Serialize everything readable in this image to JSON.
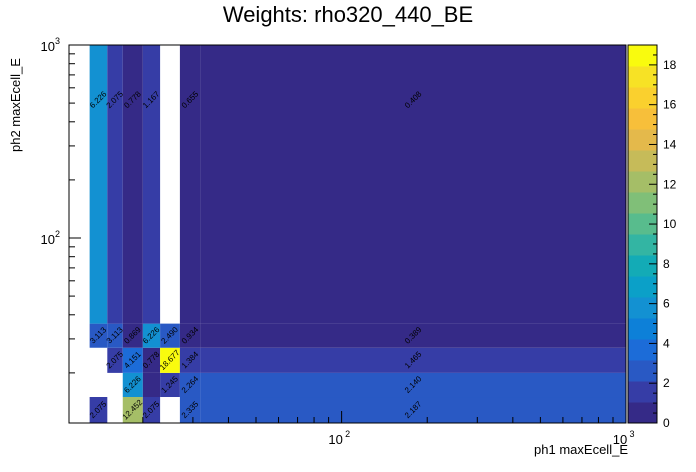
{
  "chart_data": {
    "type": "heatmap",
    "title": "Weights: rho320_440_BE",
    "xlabel": "ph1 maxEcell_E",
    "ylabel": "ph2 maxEcell_E",
    "x_scale": "log",
    "y_scale": "log",
    "xlim": [
      11,
      1000
    ],
    "ylim": [
      11,
      1000
    ],
    "x_ticks": [
      {
        "v": 100,
        "base": "10",
        "exp": "2"
      },
      {
        "v": 1000,
        "base": "10",
        "exp": "3"
      }
    ],
    "y_ticks": [
      {
        "v": 100,
        "base": "10",
        "exp": "2"
      },
      {
        "v": 1000,
        "base": "10",
        "exp": "3"
      }
    ],
    "x_edges": [
      11,
      13,
      15,
      17,
      20,
      23,
      27,
      32,
      1000
    ],
    "y_edges": [
      11,
      15,
      20,
      27,
      36,
      1000
    ],
    "colorbar": {
      "min": 0,
      "max": 19,
      "ticks": [
        0,
        2,
        4,
        6,
        8,
        10,
        12,
        14,
        16,
        18
      ],
      "palette": [
        "#352a87",
        "#363da6",
        "#2959c4",
        "#1c6cd8",
        "#0d80d8",
        "#1391d2",
        "#0ba0c8",
        "#13abb6",
        "#33b5a3",
        "#58bc8d",
        "#80bf78",
        "#a5be67",
        "#c6bb59",
        "#e4b94b",
        "#f7bf3a",
        "#fad02e",
        "#f7e225",
        "#f9fb0e"
      ]
    },
    "cells": [
      {
        "xi": 1,
        "yi": 0,
        "v": 2.075,
        "label": "2.075"
      },
      {
        "xi": 3,
        "yi": 0,
        "v": 12.452,
        "label": "12.452"
      },
      {
        "xi": 4,
        "yi": 0,
        "v": 2.075,
        "label": "2.075"
      },
      {
        "xi": 6,
        "yi": 0,
        "v": 2.335,
        "label": "2.335"
      },
      {
        "xi": 7,
        "yi": 0,
        "v": 2.187,
        "label": "2.187"
      },
      {
        "xi": 3,
        "yi": 1,
        "v": 6.226,
        "label": "6.226"
      },
      {
        "xi": 4,
        "yi": 1,
        "v": 0.0,
        "label": ""
      },
      {
        "xi": 5,
        "yi": 1,
        "v": 1.245,
        "label": "1.245"
      },
      {
        "xi": 6,
        "yi": 1,
        "v": 2.264,
        "label": "2.264"
      },
      {
        "xi": 7,
        "yi": 1,
        "v": 2.14,
        "label": "2.140"
      },
      {
        "xi": 2,
        "yi": 2,
        "v": 2.075,
        "label": "2.075"
      },
      {
        "xi": 3,
        "yi": 2,
        "v": 4.151,
        "label": "4.151"
      },
      {
        "xi": 4,
        "yi": 2,
        "v": 0.778,
        "label": "0.778"
      },
      {
        "xi": 5,
        "yi": 2,
        "v": 18.677,
        "label": "18.677"
      },
      {
        "xi": 6,
        "yi": 2,
        "v": 1.384,
        "label": "1.384"
      },
      {
        "xi": 7,
        "yi": 2,
        "v": 1.465,
        "label": "1.465"
      },
      {
        "xi": 1,
        "yi": 3,
        "v": 3.113,
        "label": "3.113"
      },
      {
        "xi": 2,
        "yi": 3,
        "v": 3.113,
        "label": "3.113"
      },
      {
        "xi": 3,
        "yi": 3,
        "v": 0.869,
        "label": "0.869"
      },
      {
        "xi": 4,
        "yi": 3,
        "v": 6.226,
        "label": "6.226"
      },
      {
        "xi": 5,
        "yi": 3,
        "v": 2.49,
        "label": "2.490"
      },
      {
        "xi": 6,
        "yi": 3,
        "v": 0.934,
        "label": "0.934"
      },
      {
        "xi": 7,
        "yi": 3,
        "v": 0.389,
        "label": "0.389"
      },
      {
        "xi": 1,
        "yi": 4,
        "v": 6.226,
        "label": "6.226"
      },
      {
        "xi": 2,
        "yi": 4,
        "v": 2.075,
        "label": "2.075"
      },
      {
        "xi": 3,
        "yi": 4,
        "v": 0.778,
        "label": "0.778"
      },
      {
        "xi": 4,
        "yi": 4,
        "v": 1.167,
        "label": "1.167"
      },
      {
        "xi": 6,
        "yi": 4,
        "v": 0.655,
        "label": "0.655"
      },
      {
        "xi": 7,
        "yi": 4,
        "v": 0.408,
        "label": "0.408"
      }
    ]
  }
}
